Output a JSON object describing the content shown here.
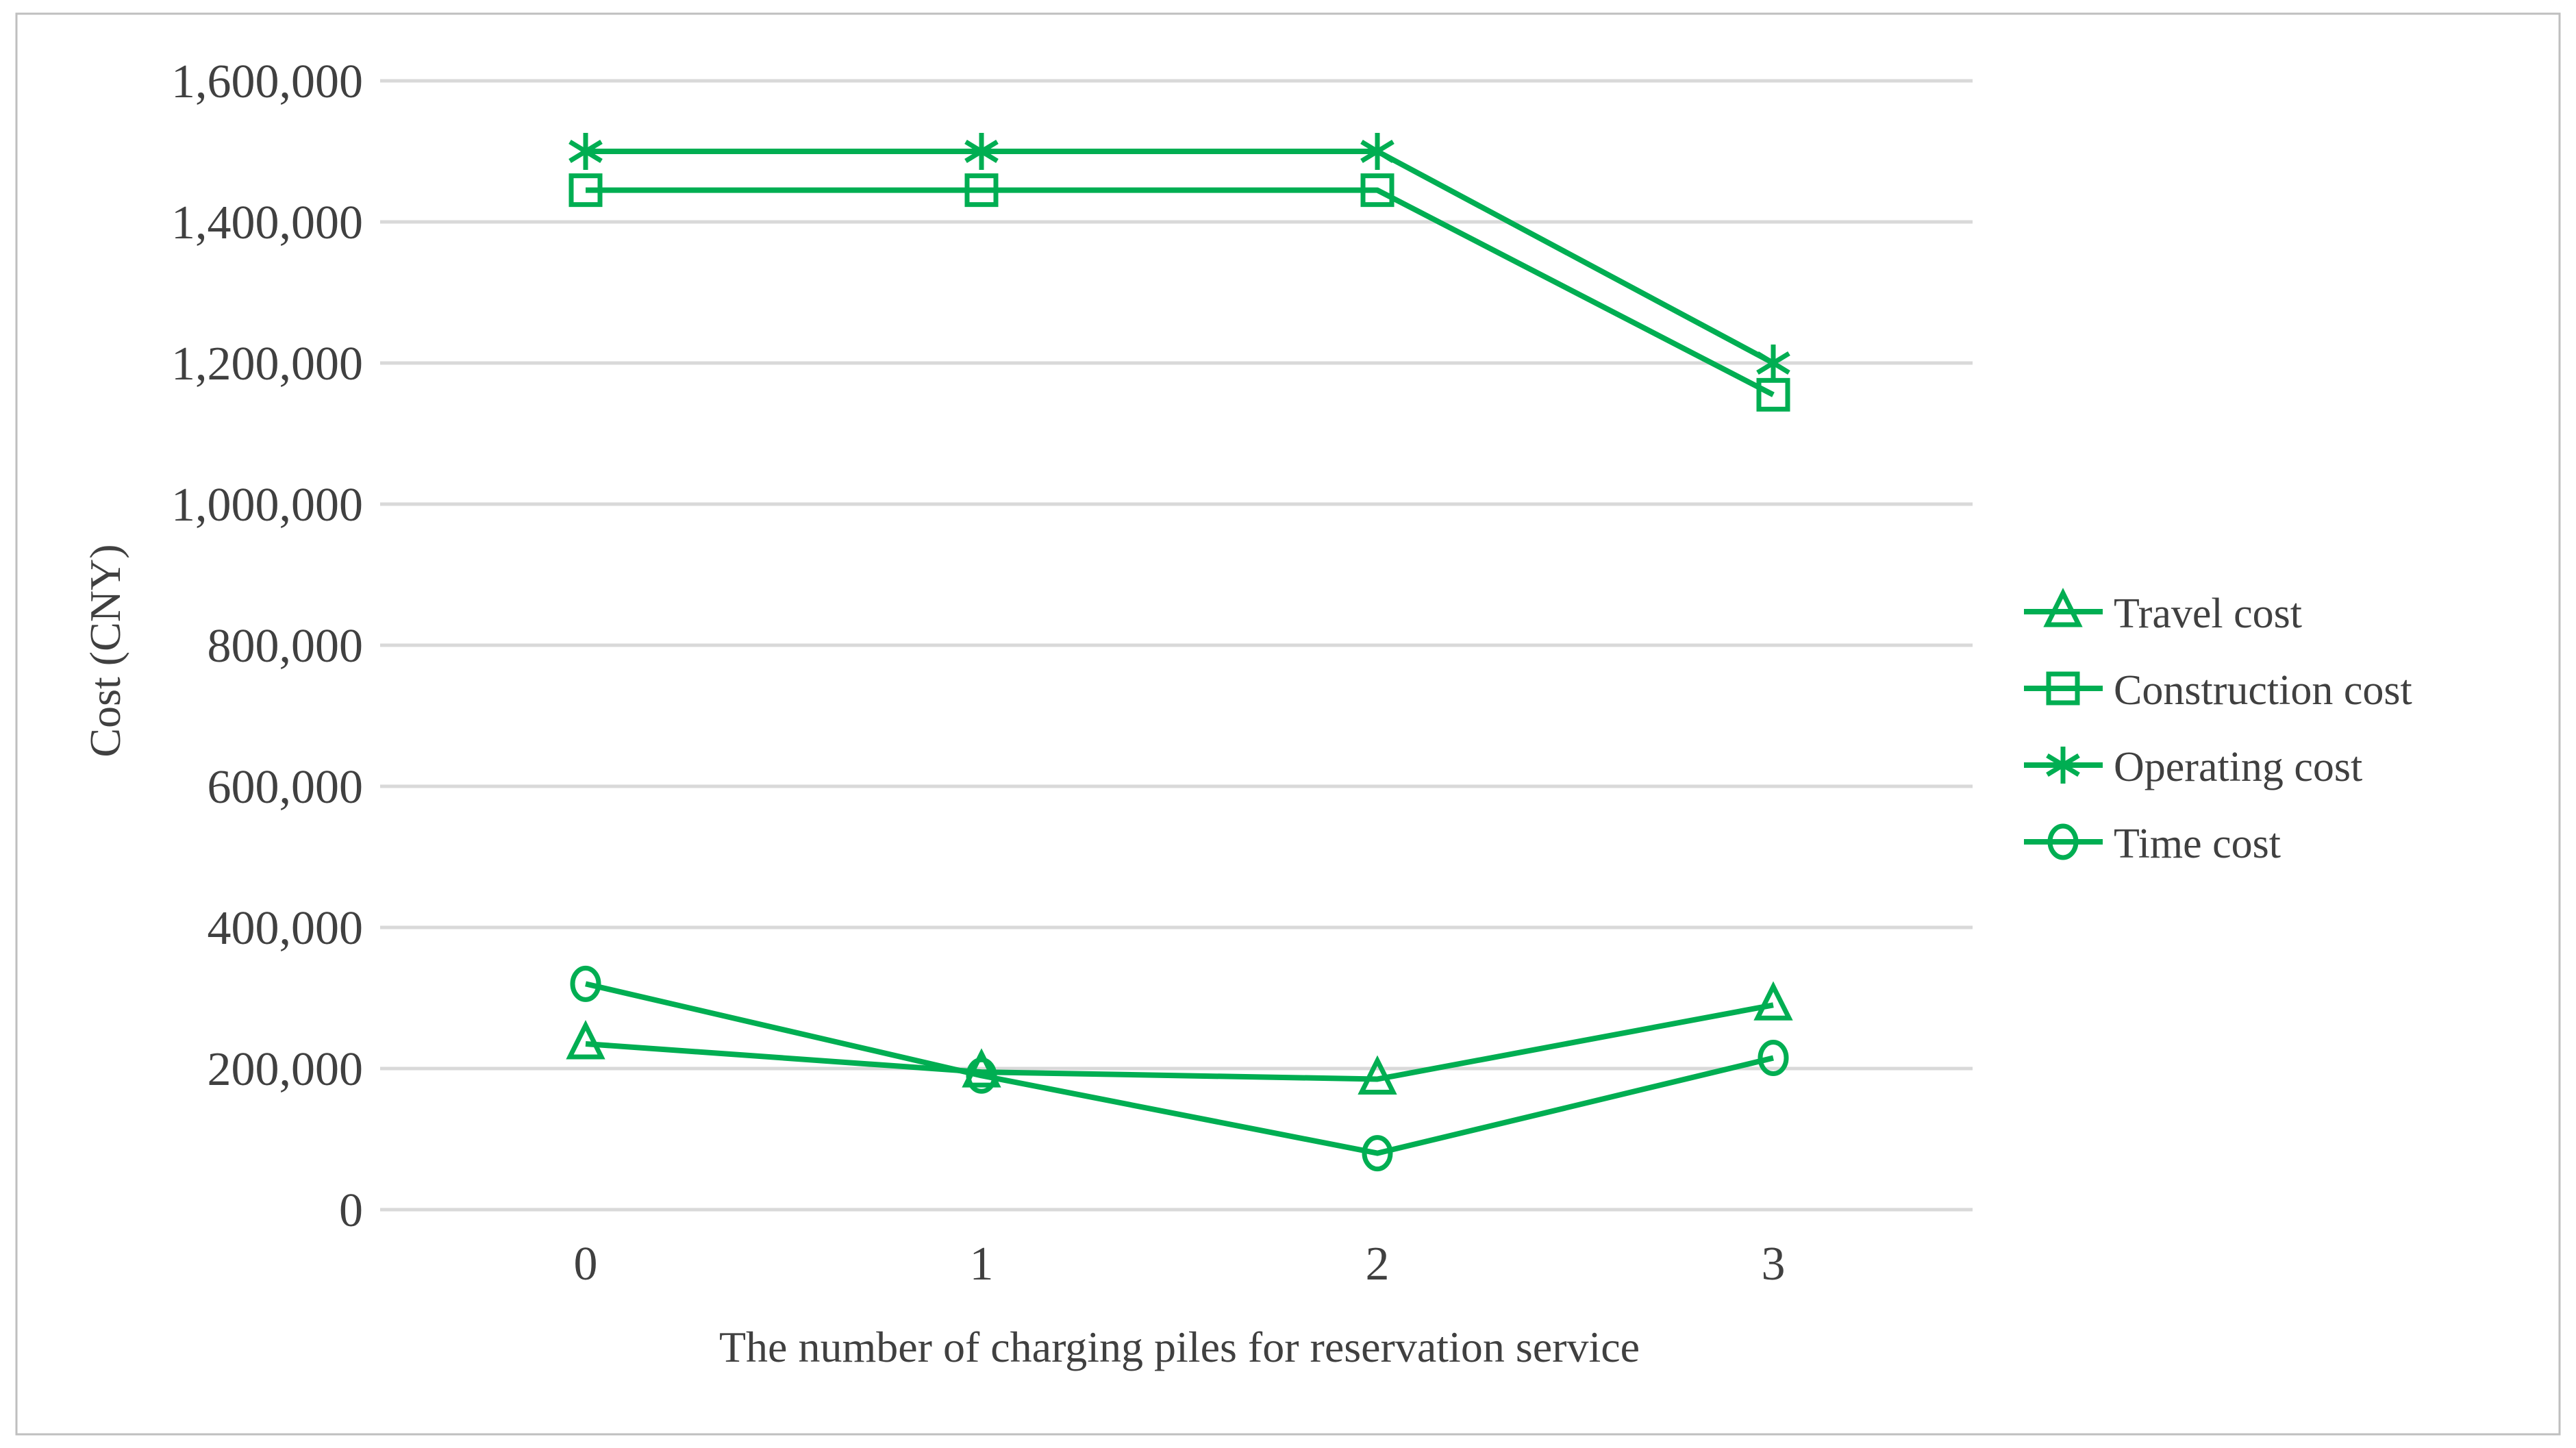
{
  "figure": {
    "border_color": "#BFBFBF",
    "background_color": "#FFFFFF"
  },
  "chart_data": {
    "type": "line",
    "title": "",
    "xlabel": "The number of charging piles for reservation service",
    "ylabel": "Cost (CNY)",
    "categories": [
      "0",
      "1",
      "2",
      "3"
    ],
    "series": [
      {
        "name": "Travel cost",
        "marker": "triangle",
        "values": [
          235000,
          195000,
          185000,
          290000
        ]
      },
      {
        "name": "Construction cost",
        "marker": "square",
        "values": [
          1445000,
          1445000,
          1445000,
          1155000
        ]
      },
      {
        "name": "Operating cost",
        "marker": "asterisk",
        "values": [
          1500000,
          1500000,
          1500000,
          1200000
        ]
      },
      {
        "name": "Time cost",
        "marker": "circle",
        "values": [
          320000,
          190000,
          80000,
          215000
        ]
      }
    ],
    "line_color": "#00AE52",
    "grid_color": "#D9D9D9",
    "text_color": "#404040",
    "ylim": [
      0,
      1600000
    ],
    "ytick_step": 200000,
    "ytick_labels": [
      "0",
      "200,000",
      "400,000",
      "600,000",
      "800,000",
      "1,000,000",
      "1,200,000",
      "1,400,000",
      "1,600,000"
    ],
    "grid": true,
    "legend_position": "right"
  }
}
